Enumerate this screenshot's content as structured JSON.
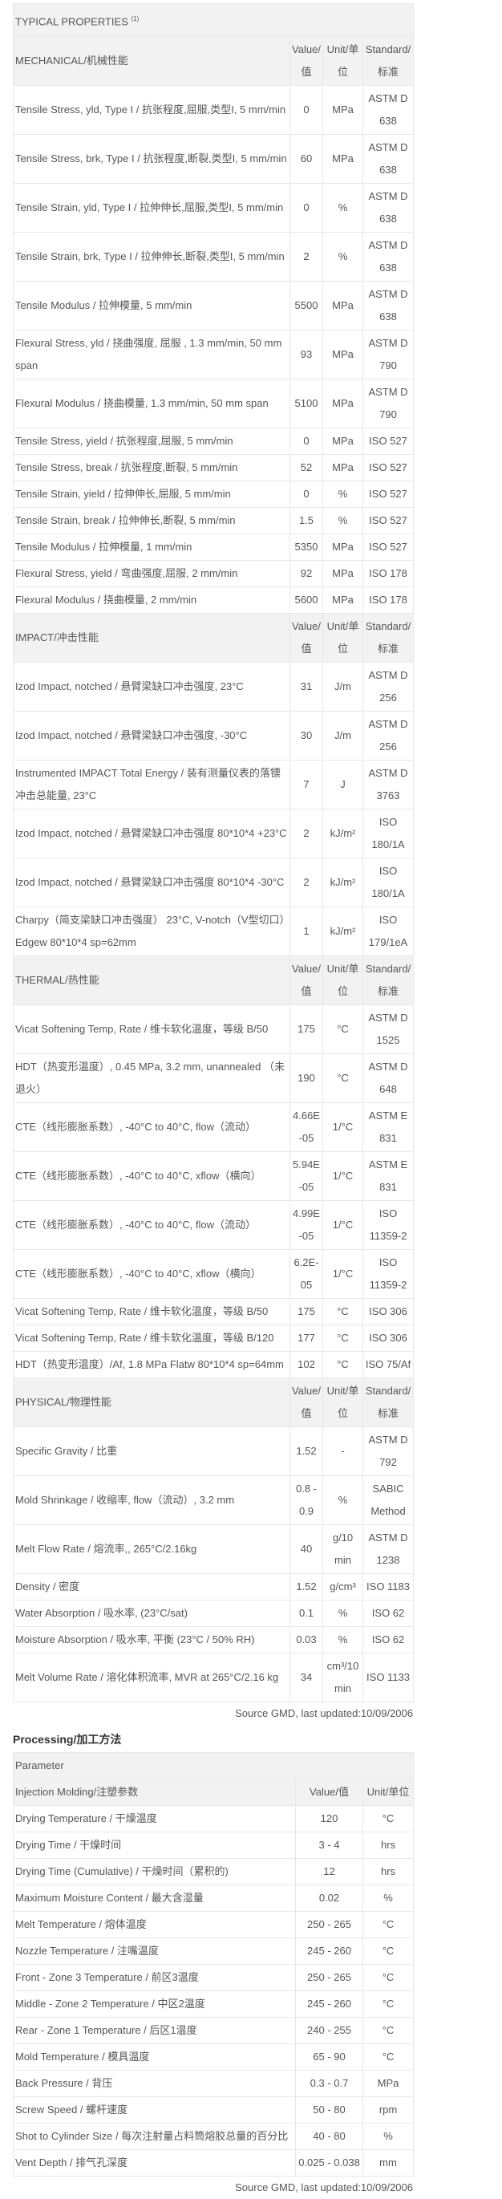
{
  "typical": {
    "title": "TYPICAL PROPERTIES",
    "title_sup": "(1)",
    "col_value": "Value/值",
    "col_unit": "Unit/单位",
    "col_standard": "Standard/标准",
    "sections": [
      {
        "name": "MECHANICAL/机械性能",
        "rows": [
          [
            "Tensile Stress, yld, Type I / 抗张程度,屈服,类型I, 5 mm/min",
            "0",
            "MPa",
            "ASTM D 638"
          ],
          [
            "Tensile Stress, brk, Type I / 抗张程度,断裂,类型I, 5 mm/min",
            "60",
            "MPa",
            "ASTM D 638"
          ],
          [
            "Tensile Strain, yld, Type I / 拉伸伸长,屈服,类型I, 5 mm/min",
            "0",
            "%",
            "ASTM D 638"
          ],
          [
            "Tensile Strain, brk, Type I / 拉伸伸长,断裂,类型I, 5 mm/min",
            "2",
            "%",
            "ASTM D 638"
          ],
          [
            "Tensile Modulus / 拉伸模量, 5 mm/min",
            "5500",
            "MPa",
            "ASTM D 638"
          ],
          [
            "Flexural Stress, yld / 挠曲强度, 屈服 , 1.3 mm/min, 50 mm span",
            "93",
            "MPa",
            "ASTM D 790"
          ],
          [
            "Flexural Modulus / 挠曲模量, 1.3 mm/min, 50 mm span",
            "5100",
            "MPa",
            "ASTM D 790"
          ],
          [
            "Tensile Stress, yield / 抗张程度,屈服, 5 mm/min",
            "0",
            "MPa",
            "ISO 527"
          ],
          [
            "Tensile Stress, break / 抗张程度,断裂, 5 mm/min",
            "52",
            "MPa",
            "ISO 527"
          ],
          [
            "Tensile Strain, yield / 拉伸伸长,屈服, 5 mm/min",
            "0",
            "%",
            "ISO 527"
          ],
          [
            "Tensile Strain, break / 拉伸伸长,断裂, 5 mm/min",
            "1.5",
            "%",
            "ISO 527"
          ],
          [
            "Tensile Modulus / 拉伸模量, 1 mm/min",
            "5350",
            "MPa",
            "ISO 527"
          ],
          [
            "Flexural Stress, yield / 弯曲强度,屈服, 2 mm/min",
            "92",
            "MPa",
            "ISO 178"
          ],
          [
            "Flexural Modulus / 挠曲模量, 2 mm/min",
            "5600",
            "MPa",
            "ISO 178"
          ]
        ]
      },
      {
        "name": "IMPACT/冲击性能",
        "rows": [
          [
            "Izod Impact, notched / 悬臂梁缺口冲击强度, 23°C",
            "31",
            "J/m",
            "ASTM D 256"
          ],
          [
            "Izod Impact, notched / 悬臂梁缺口冲击强度, -30°C",
            "30",
            "J/m",
            "ASTM D 256"
          ],
          [
            "Instrumented IMPACT Total Energy / 装有测量仪表的落镖冲击总能量, 23°C",
            "7",
            "J",
            "ASTM D 3763"
          ],
          [
            "Izod Impact, notched / 悬臂梁缺口冲击强度 80*10*4 +23°C",
            "2",
            "kJ/m²",
            "ISO 180/1A"
          ],
          [
            "Izod Impact, notched / 悬臂梁缺口冲击强度 80*10*4 -30°C",
            "2",
            "kJ/m²",
            "ISO 180/1A"
          ],
          [
            "Charpy（简支梁缺口冲击强度） 23°C, V-notch（V型切口）Edgew 80*10*4 sp=62mm",
            "1",
            "kJ/m²",
            "ISO 179/1eA"
          ]
        ]
      },
      {
        "name": "THERMAL/热性能",
        "rows": [
          [
            "Vicat Softening Temp, Rate / 维卡软化温度，等级 B/50",
            "175",
            "°C",
            "ASTM D 1525"
          ],
          [
            "HDT（热变形温度）, 0.45 MPa, 3.2 mm, unannealed （未退火）",
            "190",
            "°C",
            "ASTM D 648"
          ],
          [
            "CTE（线形膨胀系数）, -40°C to 40°C, flow（流动）",
            "4.66E-05",
            "1/°C",
            "ASTM E 831"
          ],
          [
            "CTE（线形膨胀系数）, -40°C to 40°C, xflow（横向）",
            "5.94E-05",
            "1/°C",
            "ASTM E 831"
          ],
          [
            "CTE（线形膨胀系数）, -40°C to 40°C, flow（流动）",
            "4.99E-05",
            "1/°C",
            "ISO 11359-2"
          ],
          [
            "CTE（线形膨胀系数）, -40°C to 40°C, xflow（横向）",
            "6.2E-05",
            "1/°C",
            "ISO 11359-2"
          ],
          [
            "Vicat Softening Temp, Rate / 维卡软化温度，等级 B/50",
            "175",
            "°C",
            "ISO 306"
          ],
          [
            "Vicat Softening Temp, Rate / 维卡软化温度，等级 B/120",
            "177",
            "°C",
            "ISO 306"
          ],
          [
            "HDT（热变形温度）/Af, 1.8 MPa Flatw 80*10*4 sp=64mm",
            "102",
            "°C",
            "ISO 75/Af"
          ]
        ]
      },
      {
        "name": "PHYSICAL/物理性能",
        "rows": [
          [
            "Specific Gravity / 比重",
            "1.52",
            "-",
            "ASTM D 792"
          ],
          [
            "Mold Shrinkage / 收缩率, flow（流动）, 3.2 mm",
            "0.8 - 0.9",
            "%",
            "SABIC Method"
          ],
          [
            "Melt Flow Rate / 熔流率,, 265°C/2.16kg",
            "40",
            "g/10 min",
            "ASTM D 1238"
          ],
          [
            "Density / 密度",
            "1.52",
            "g/cm³",
            "ISO 1183"
          ],
          [
            "Water Absorption / 吸水率, (23°C/sat)",
            "0.1",
            "%",
            "ISO 62"
          ],
          [
            "Moisture Absorption / 吸水率, 平衡 (23°C / 50% RH)",
            "0.03",
            "%",
            "ISO 62"
          ],
          [
            "Melt Volume Rate / 溶化体积流率, MVR at 265°C/2.16 kg",
            "34",
            "cm³/10 min",
            "ISO 1133"
          ]
        ]
      }
    ],
    "source": "Source GMD, last updated:10/09/2006"
  },
  "processing": {
    "title": "Processing/加工方法",
    "parameter_label": "Parameter",
    "section": "Injection Molding/注塑参数",
    "col_value": "Value/值",
    "col_unit": "Unit/单位",
    "rows": [
      [
        "Drying Temperature / 干燥温度",
        "120",
        "°C"
      ],
      [
        "Drying Time / 干燥时间",
        "3 - 4",
        "hrs"
      ],
      [
        "Drying Time (Cumulative) / 干燥时间（累积的)",
        "12",
        "hrs"
      ],
      [
        "Maximum Moisture Content / 最大含湿量",
        "0.02",
        "%"
      ],
      [
        "Melt Temperature / 熔体温度",
        "250 - 265",
        "°C"
      ],
      [
        "Nozzle Temperature / 注嘴温度",
        "245 - 260",
        "°C"
      ],
      [
        "Front - Zone 3 Temperature / 前区3温度",
        "250 - 265",
        "°C"
      ],
      [
        "Middle - Zone 2 Temperature / 中区2温度",
        "245 - 260",
        "°C"
      ],
      [
        "Rear - Zone 1 Temperature / 后区1温度",
        "240 - 255",
        "°C"
      ],
      [
        "Mold Temperature / 模具温度",
        "65 - 90",
        "°C"
      ],
      [
        "Back Pressure / 背压",
        "0.3 - 0.7",
        "MPa"
      ],
      [
        "Screw Speed / 螺杆速度",
        "50 - 80",
        "rpm"
      ],
      [
        "Shot to Cylinder Size / 每次注射量占料筒熔胶总量的百分比",
        "40 - 80",
        "%"
      ],
      [
        "Vent Depth / 排气孔深度",
        "0.025 - 0.038",
        "mm"
      ]
    ],
    "source": "Source GMD, last updated:10/09/2006"
  }
}
